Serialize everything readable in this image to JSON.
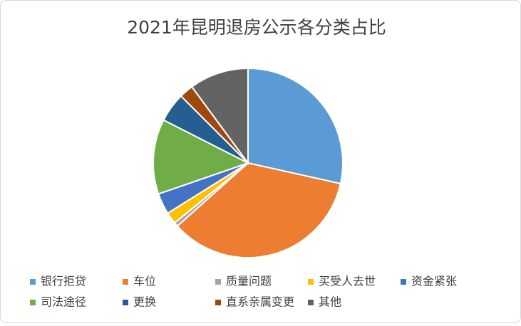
{
  "chart_data": {
    "type": "pie",
    "title": "2021年昆明退房公示各分类占比",
    "categories": [
      "银行拒贷",
      "车位",
      "质量问题",
      "买受人去世",
      "资金紧张",
      "司法途径",
      "更换",
      "直系亲属变更",
      "其他"
    ],
    "values": [
      28.5,
      34.9,
      0.7,
      2.0,
      3.6,
      12.8,
      5.0,
      2.4,
      10.1
    ],
    "colors": [
      "#5b9bd5",
      "#ed7d31",
      "#a5a5a5",
      "#ffc000",
      "#4472c4",
      "#70ad47",
      "#255e91",
      "#9e480e",
      "#636363"
    ],
    "legend": "bottom"
  }
}
